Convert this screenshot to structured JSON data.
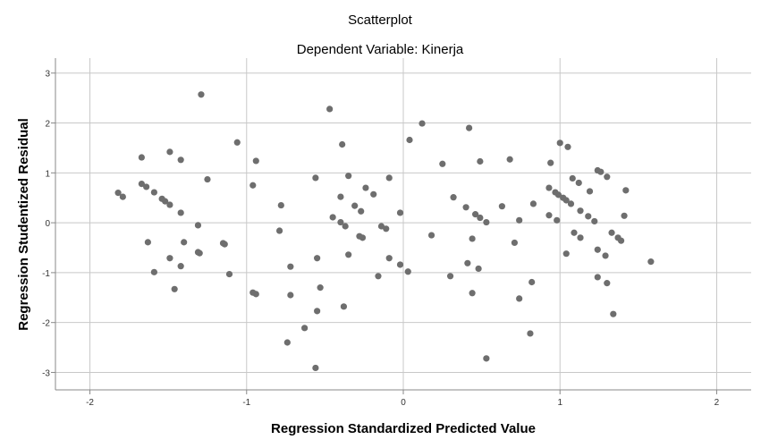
{
  "chart_data": {
    "type": "scatter",
    "title": "Scatterplot",
    "subtitle": "Dependent Variable: Kinerja",
    "xlabel": "Regression Standardized Predicted Value",
    "ylabel": "Regression Studentized Residual",
    "xlim": [
      -2.22,
      2.22
    ],
    "ylim": [
      -3.35,
      3.3
    ],
    "xticks": [
      -2,
      -1,
      0,
      1,
      2
    ],
    "yticks": [
      -3,
      -2,
      -1,
      0,
      1,
      2,
      3
    ],
    "xtick_labels": [
      "-2",
      "-1",
      "0",
      "1",
      "2"
    ],
    "ytick_labels": [
      "-3",
      "-2",
      "-1",
      "0",
      "1",
      "2",
      "3"
    ],
    "grid": true,
    "point_color": "#6e6e6e",
    "grid_color": "#c8c8c8",
    "points": [
      [
        -1.29,
        2.57
      ],
      [
        -0.47,
        2.28
      ],
      [
        -1.06,
        1.61
      ],
      [
        -0.39,
        1.57
      ],
      [
        0.04,
        1.66
      ],
      [
        -1.67,
        1.31
      ],
      [
        -1.49,
        1.42
      ],
      [
        -1.42,
        1.26
      ],
      [
        -0.94,
        1.24
      ],
      [
        -1.25,
        0.87
      ],
      [
        -0.96,
        0.75
      ],
      [
        -0.56,
        0.9
      ],
      [
        -0.35,
        0.94
      ],
      [
        -0.09,
        0.9
      ],
      [
        -1.82,
        0.6
      ],
      [
        -1.79,
        0.52
      ],
      [
        -1.67,
        0.78
      ],
      [
        -1.64,
        0.72
      ],
      [
        -1.59,
        0.61
      ],
      [
        -1.54,
        0.48
      ],
      [
        -1.52,
        0.43
      ],
      [
        -1.49,
        0.36
      ],
      [
        -1.42,
        0.2
      ],
      [
        -0.24,
        0.7
      ],
      [
        -0.19,
        0.57
      ],
      [
        -0.4,
        0.52
      ],
      [
        -0.31,
        0.34
      ],
      [
        -0.27,
        0.23
      ],
      [
        -0.78,
        0.35
      ],
      [
        -0.02,
        0.2
      ],
      [
        -0.45,
        0.11
      ],
      [
        -0.4,
        0.01
      ],
      [
        -0.37,
        -0.07
      ],
      [
        -0.14,
        -0.07
      ],
      [
        -0.11,
        -0.12
      ],
      [
        -1.31,
        -0.05
      ],
      [
        -0.79,
        -0.16
      ],
      [
        -0.28,
        -0.27
      ],
      [
        -0.26,
        -0.3
      ],
      [
        -1.63,
        -0.39
      ],
      [
        -1.4,
        -0.39
      ],
      [
        -1.15,
        -0.41
      ],
      [
        -1.14,
        -0.43
      ],
      [
        -1.31,
        -0.59
      ],
      [
        -1.3,
        -0.61
      ],
      [
        -1.49,
        -0.71
      ],
      [
        -0.55,
        -0.71
      ],
      [
        -0.35,
        -0.64
      ],
      [
        -0.09,
        -0.71
      ],
      [
        -0.02,
        -0.84
      ],
      [
        0.03,
        -0.98
      ],
      [
        -1.42,
        -0.87
      ],
      [
        -0.72,
        -0.88
      ],
      [
        -1.59,
        -0.99
      ],
      [
        -1.11,
        -1.03
      ],
      [
        -0.16,
        -1.07
      ],
      [
        -1.46,
        -1.33
      ],
      [
        -0.53,
        -1.3
      ],
      [
        -0.96,
        -1.4
      ],
      [
        -0.94,
        -1.43
      ],
      [
        -0.72,
        -1.45
      ],
      [
        -0.38,
        -1.68
      ],
      [
        -0.55,
        -1.77
      ],
      [
        -0.63,
        -2.11
      ],
      [
        -0.74,
        -2.4
      ],
      [
        -0.56,
        -2.91
      ],
      [
        0.12,
        1.99
      ],
      [
        0.42,
        1.9
      ],
      [
        0.25,
        1.18
      ],
      [
        0.49,
        1.23
      ],
      [
        0.68,
        1.27
      ],
      [
        0.94,
        1.2
      ],
      [
        1.0,
        1.6
      ],
      [
        1.05,
        1.52
      ],
      [
        1.24,
        1.05
      ],
      [
        1.26,
        1.02
      ],
      [
        1.3,
        0.92
      ],
      [
        1.08,
        0.89
      ],
      [
        1.12,
        0.8
      ],
      [
        1.19,
        0.63
      ],
      [
        1.42,
        0.65
      ],
      [
        0.93,
        0.7
      ],
      [
        0.97,
        0.61
      ],
      [
        0.99,
        0.56
      ],
      [
        1.02,
        0.5
      ],
      [
        1.04,
        0.45
      ],
      [
        1.07,
        0.38
      ],
      [
        0.32,
        0.51
      ],
      [
        0.4,
        0.31
      ],
      [
        0.63,
        0.33
      ],
      [
        0.83,
        0.38
      ],
      [
        0.46,
        0.17
      ],
      [
        0.49,
        0.1
      ],
      [
        0.53,
        0.01
      ],
      [
        0.74,
        0.05
      ],
      [
        0.93,
        0.15
      ],
      [
        0.98,
        0.05
      ],
      [
        1.13,
        0.24
      ],
      [
        1.18,
        0.13
      ],
      [
        1.22,
        0.03
      ],
      [
        1.41,
        0.14
      ],
      [
        0.18,
        -0.25
      ],
      [
        0.44,
        -0.32
      ],
      [
        0.71,
        -0.4
      ],
      [
        1.09,
        -0.2
      ],
      [
        1.13,
        -0.3
      ],
      [
        1.33,
        -0.2
      ],
      [
        1.37,
        -0.3
      ],
      [
        1.39,
        -0.36
      ],
      [
        1.04,
        -0.62
      ],
      [
        1.24,
        -0.54
      ],
      [
        1.29,
        -0.66
      ],
      [
        1.58,
        -0.78
      ],
      [
        0.41,
        -0.81
      ],
      [
        0.48,
        -0.92
      ],
      [
        0.3,
        -1.07
      ],
      [
        0.82,
        -1.19
      ],
      [
        1.24,
        -1.09
      ],
      [
        1.3,
        -1.21
      ],
      [
        0.44,
        -1.41
      ],
      [
        0.74,
        -1.52
      ],
      [
        1.34,
        -1.83
      ],
      [
        0.81,
        -2.22
      ],
      [
        0.53,
        -2.72
      ]
    ]
  }
}
